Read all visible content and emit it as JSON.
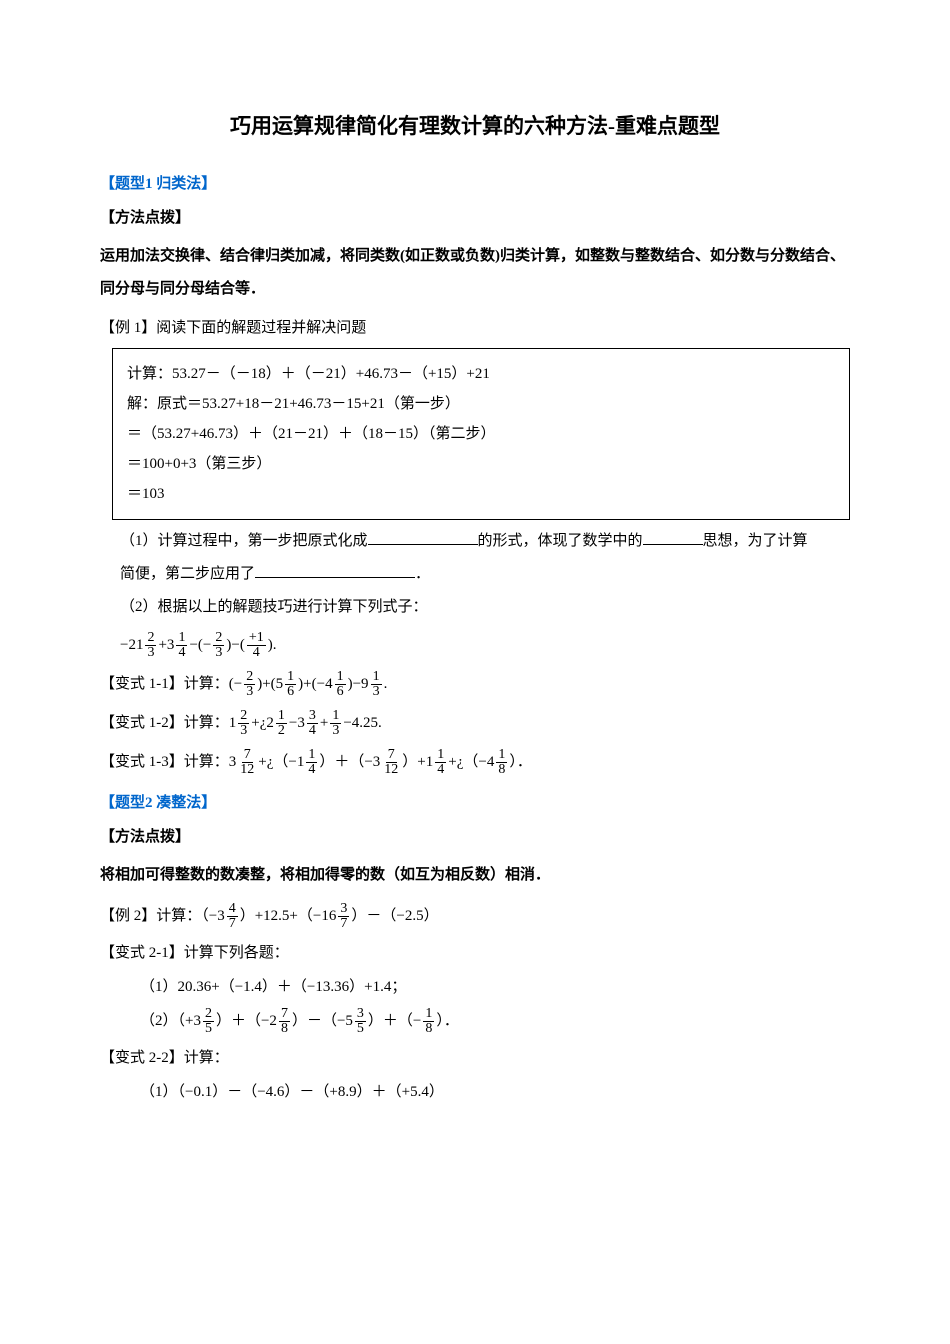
{
  "title": "巧用运算规律简化有理数计算的六种方法-重难点题型",
  "sec1": {
    "label": "【题型1 归类法】",
    "hintLabel": "【方法点拨】",
    "hint": "运用加法交换律、结合律归类加减，将同类数(如正数或负数)归类计算，如整数与整数结合、如分数与分数结合、同分母与同分母结合等．",
    "ex1Intro": "【例 1】阅读下面的解题过程并解决问题",
    "box": {
      "l1": "计算：53.27－（－18）＋（－21）+46.73－（+15）+21",
      "l2": "解：原式＝53.27+18－21+46.73－15+21（第一步）",
      "l3": "＝（53.27+46.73）＋（21－21）＋（18－15）（第二步）",
      "l4": "＝100+0+3（第三步）",
      "l5": "＝103"
    },
    "q1a": "（1）计算过程中，第一步把原式化成",
    "q1b": "的形式，体现了数学中的",
    "q1c": "思想，为了计算",
    "q1d": "简便，第二步应用了",
    "q1e": "．",
    "q2": "（2）根据以上的解题技巧进行计算下列式子：",
    "formula": {
      "pre": "−21",
      "f1n": "2",
      "f1d": "3",
      "mid1": "+3",
      "f2n": "1",
      "f2d": "4",
      "mid2": "−(−",
      "f3n": "2",
      "f3d": "3",
      "mid3": ")−(",
      "f4n": "+1",
      "f4d": "4",
      "end": ")."
    },
    "v11": {
      "label": "【变式 1-1】计算：",
      "p1": "(−",
      "f1n": "2",
      "f1d": "3",
      "p2": ")+(5",
      "f2n": "1",
      "f2d": "6",
      "p3": ")+(−4",
      "f3n": "1",
      "f3d": "6",
      "p4": ")−9",
      "f4n": "1",
      "f4d": "3",
      "end": "."
    },
    "v12": {
      "label": "【变式 1-2】计算：",
      "p1": "1",
      "f1n": "2",
      "f1d": "3",
      "p2": "+¿2",
      "f2n": "1",
      "f2d": "2",
      "p3": "−3",
      "f3n": "3",
      "f3d": "4",
      "p4": "+",
      "f4n": "1",
      "f4d": "3",
      "p5": "−4.25."
    },
    "v13": {
      "label": "【变式 1-3】计算：",
      "p1": "3",
      "f1n": "7",
      "f1d": "12",
      "p2": "+¿（−1",
      "f2n": "1",
      "f2d": "4",
      "p3": "）＋（−3",
      "f3n": "7",
      "f3d": "12",
      "p4": "）+1",
      "f4n": "1",
      "f4d": "4",
      "p5": "+¿（−4",
      "f5n": "1",
      "f5d": "8",
      "p6": "）．"
    }
  },
  "sec2": {
    "label": "【题型2 凑整法】",
    "hintLabel": "【方法点拨】",
    "hint": "将相加可得整数的数凑整，将相加得零的数（如互为相反数）相消．",
    "ex2": {
      "label": "【例 2】计算：（−3",
      "f1n": "4",
      "f1d": "7",
      "p2": "）+12.5+（−16",
      "f2n": "3",
      "f2d": "7",
      "p3": "）－（−2.5）"
    },
    "v21label": "【变式 2-1】计算下列各题：",
    "v21a": "（1）20.36+（−1.4）＋（−13.36）+1.4；",
    "v21b": {
      "p1": "（2）（+3",
      "f1n": "2",
      "f1d": "5",
      "p2": "）＋（−2",
      "f2n": "7",
      "f2d": "8",
      "p3": "）－（−5",
      "f3n": "3",
      "f3d": "5",
      "p4": "）＋（−",
      "f4n": "1",
      "f4d": "8",
      "p5": "）．"
    },
    "v22label": "【变式 2-2】计算：",
    "v22a": "（1）（−0.1）－（−4.6）－（+8.9）＋（+5.4）"
  }
}
